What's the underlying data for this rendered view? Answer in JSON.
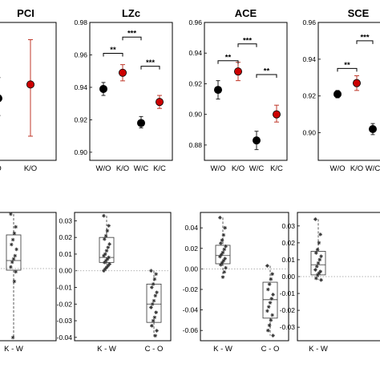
{
  "chart_data": [
    {
      "type": "scatter",
      "title": "PCI",
      "categories": [
        "O",
        "K/O"
      ],
      "ylim": [
        0.3,
        0.5
      ],
      "yticks": [],
      "series": [
        {
          "category": "O",
          "mean": 0.39,
          "lower": 0.365,
          "upper": 0.42,
          "color": "#000000"
        },
        {
          "category": "K/O",
          "mean": 0.41,
          "lower": 0.335,
          "upper": 0.475,
          "color": "#cc0000"
        }
      ],
      "significance": []
    },
    {
      "type": "scatter",
      "title": "LZc",
      "categories": [
        "W/O",
        "K/O",
        "W/C",
        "K/C"
      ],
      "ylim": [
        0.895,
        0.98
      ],
      "yticks": [
        "0.98",
        "0.96",
        "0.94",
        "0.92",
        "0.90"
      ],
      "series": [
        {
          "category": "W/O",
          "mean": 0.939,
          "lower": 0.935,
          "upper": 0.943,
          "color": "#000000"
        },
        {
          "category": "K/O",
          "mean": 0.949,
          "lower": 0.944,
          "upper": 0.954,
          "color": "#cc0000"
        },
        {
          "category": "W/C",
          "mean": 0.918,
          "lower": 0.915,
          "upper": 0.922,
          "color": "#000000"
        },
        {
          "category": "K/C",
          "mean": 0.931,
          "lower": 0.927,
          "upper": 0.935,
          "color": "#cc0000"
        }
      ],
      "significance": [
        {
          "from": 0,
          "to": 1,
          "label": "**",
          "y": 0.961
        },
        {
          "from": 1,
          "to": 2,
          "label": "***",
          "y": 0.971
        },
        {
          "from": 2,
          "to": 3,
          "label": "***",
          "y": 0.953
        }
      ]
    },
    {
      "type": "scatter",
      "title": "ACE",
      "categories": [
        "W/O",
        "K/O",
        "W/C",
        "K/C"
      ],
      "ylim": [
        0.87,
        0.96
      ],
      "yticks": [
        "0.96",
        "0.94",
        "0.92",
        "0.90",
        "0.88"
      ],
      "series": [
        {
          "category": "W/O",
          "mean": 0.916,
          "lower": 0.91,
          "upper": 0.922,
          "color": "#000000"
        },
        {
          "category": "K/O",
          "mean": 0.928,
          "lower": 0.922,
          "upper": 0.934,
          "color": "#cc0000"
        },
        {
          "category": "W/C",
          "mean": 0.883,
          "lower": 0.877,
          "upper": 0.889,
          "color": "#000000"
        },
        {
          "category": "K/C",
          "mean": 0.9,
          "lower": 0.895,
          "upper": 0.906,
          "color": "#cc0000"
        }
      ],
      "significance": [
        {
          "from": 0,
          "to": 1,
          "label": "**",
          "y": 0.935
        },
        {
          "from": 1,
          "to": 2,
          "label": "***",
          "y": 0.946
        },
        {
          "from": 2,
          "to": 3,
          "label": "**",
          "y": 0.926
        }
      ]
    },
    {
      "type": "scatter",
      "title": "SCE",
      "categories": [
        "W/O",
        "K/O",
        "W/C"
      ],
      "ylim": [
        0.885,
        0.96
      ],
      "yticks": [
        "0.96",
        "0.94",
        "0.92",
        "0.90"
      ],
      "series": [
        {
          "category": "W/O",
          "mean": 0.921,
          "lower": 0.919,
          "upper": 0.923,
          "color": "#000000"
        },
        {
          "category": "K/O",
          "mean": 0.927,
          "lower": 0.923,
          "upper": 0.931,
          "color": "#cc0000"
        },
        {
          "category": "W/C",
          "mean": 0.902,
          "lower": 0.899,
          "upper": 0.905,
          "color": "#000000"
        }
      ],
      "significance": [
        {
          "from": 0,
          "to": 1,
          "label": "**",
          "y": 0.935
        },
        {
          "from": 1,
          "to": 2,
          "label": "***",
          "y": 0.95
        }
      ]
    },
    {
      "type": "box",
      "categories": [
        "K - W"
      ],
      "ylim": [
        -0.045,
        0.035
      ],
      "yticks": [],
      "zero_line": true,
      "boxes": [
        {
          "category": "K - W",
          "min": -0.043,
          "q1": -0.001,
          "median": 0.005,
          "q3": 0.021,
          "max": 0.034,
          "points": [
            0.034,
            0.026,
            0.022,
            0.018,
            0.015,
            0.012,
            0.008,
            0.006,
            0.004,
            0.001,
            -0.002,
            -0.008,
            -0.043
          ]
        }
      ]
    },
    {
      "type": "box",
      "categories": [
        "K - W",
        "C - O"
      ],
      "ylim": [
        -0.042,
        0.035
      ],
      "yticks": [
        "0.03",
        "0.02",
        "0.01",
        "0.00",
        "-0.01",
        "-0.02",
        "-0.03",
        "-0.04"
      ],
      "zero_line": true,
      "boxes": [
        {
          "category": "K - W",
          "min": 0.0,
          "q1": 0.005,
          "median": 0.008,
          "q3": 0.02,
          "max": 0.033,
          "points": [
            0.033,
            0.027,
            0.024,
            0.021,
            0.019,
            0.016,
            0.014,
            0.012,
            0.01,
            0.009,
            0.008,
            0.007,
            0.006,
            0.005,
            0.004,
            0.003,
            0.002,
            0.001,
            0.0
          ]
        },
        {
          "category": "C - O",
          "min": -0.04,
          "q1": -0.031,
          "median": -0.02,
          "q3": -0.008,
          "max": 0.0,
          "points": [
            0.0,
            -0.002,
            -0.005,
            -0.008,
            -0.01,
            -0.013,
            -0.015,
            -0.018,
            -0.02,
            -0.022,
            -0.025,
            -0.028,
            -0.03,
            -0.033,
            -0.036,
            -0.039
          ]
        }
      ]
    },
    {
      "type": "box",
      "categories": [
        "K - W",
        "C - O"
      ],
      "ylim": [
        -0.07,
        0.055
      ],
      "yticks": [
        "0.04",
        "0.02",
        "0.00",
        "-0.02",
        "-0.04",
        "-0.06"
      ],
      "zero_line": true,
      "boxes": [
        {
          "category": "K - W",
          "min": -0.008,
          "q1": 0.005,
          "median": 0.013,
          "q3": 0.023,
          "max": 0.05,
          "points": [
            0.05,
            0.04,
            0.033,
            0.028,
            0.025,
            0.022,
            0.019,
            0.016,
            0.014,
            0.012,
            0.01,
            0.008,
            0.006,
            0.004,
            0.001,
            -0.003,
            -0.008
          ]
        },
        {
          "category": "C - O",
          "min": -0.065,
          "q1": -0.048,
          "median": -0.03,
          "q3": -0.013,
          "max": 0.003,
          "points": [
            0.003,
            -0.005,
            -0.01,
            -0.015,
            -0.02,
            -0.025,
            -0.029,
            -0.033,
            -0.037,
            -0.041,
            -0.045,
            -0.05,
            -0.055,
            -0.06,
            -0.065
          ]
        }
      ]
    },
    {
      "type": "box",
      "categories": [
        "K - W"
      ],
      "ylim": [
        -0.038,
        0.038
      ],
      "yticks": [
        "0.03",
        "0.02",
        "0.01",
        "0.00",
        "-0.01",
        "-0.02",
        "-0.03"
      ],
      "zero_line": true,
      "boxes": [
        {
          "category": "K - W",
          "min": -0.002,
          "q1": 0.001,
          "median": 0.007,
          "q3": 0.015,
          "max": 0.034,
          "points": [
            0.034,
            0.025,
            0.02,
            0.016,
            0.014,
            0.012,
            0.01,
            0.008,
            0.006,
            0.004,
            0.003,
            0.002,
            0.001,
            -0.001,
            -0.002
          ]
        }
      ]
    }
  ]
}
